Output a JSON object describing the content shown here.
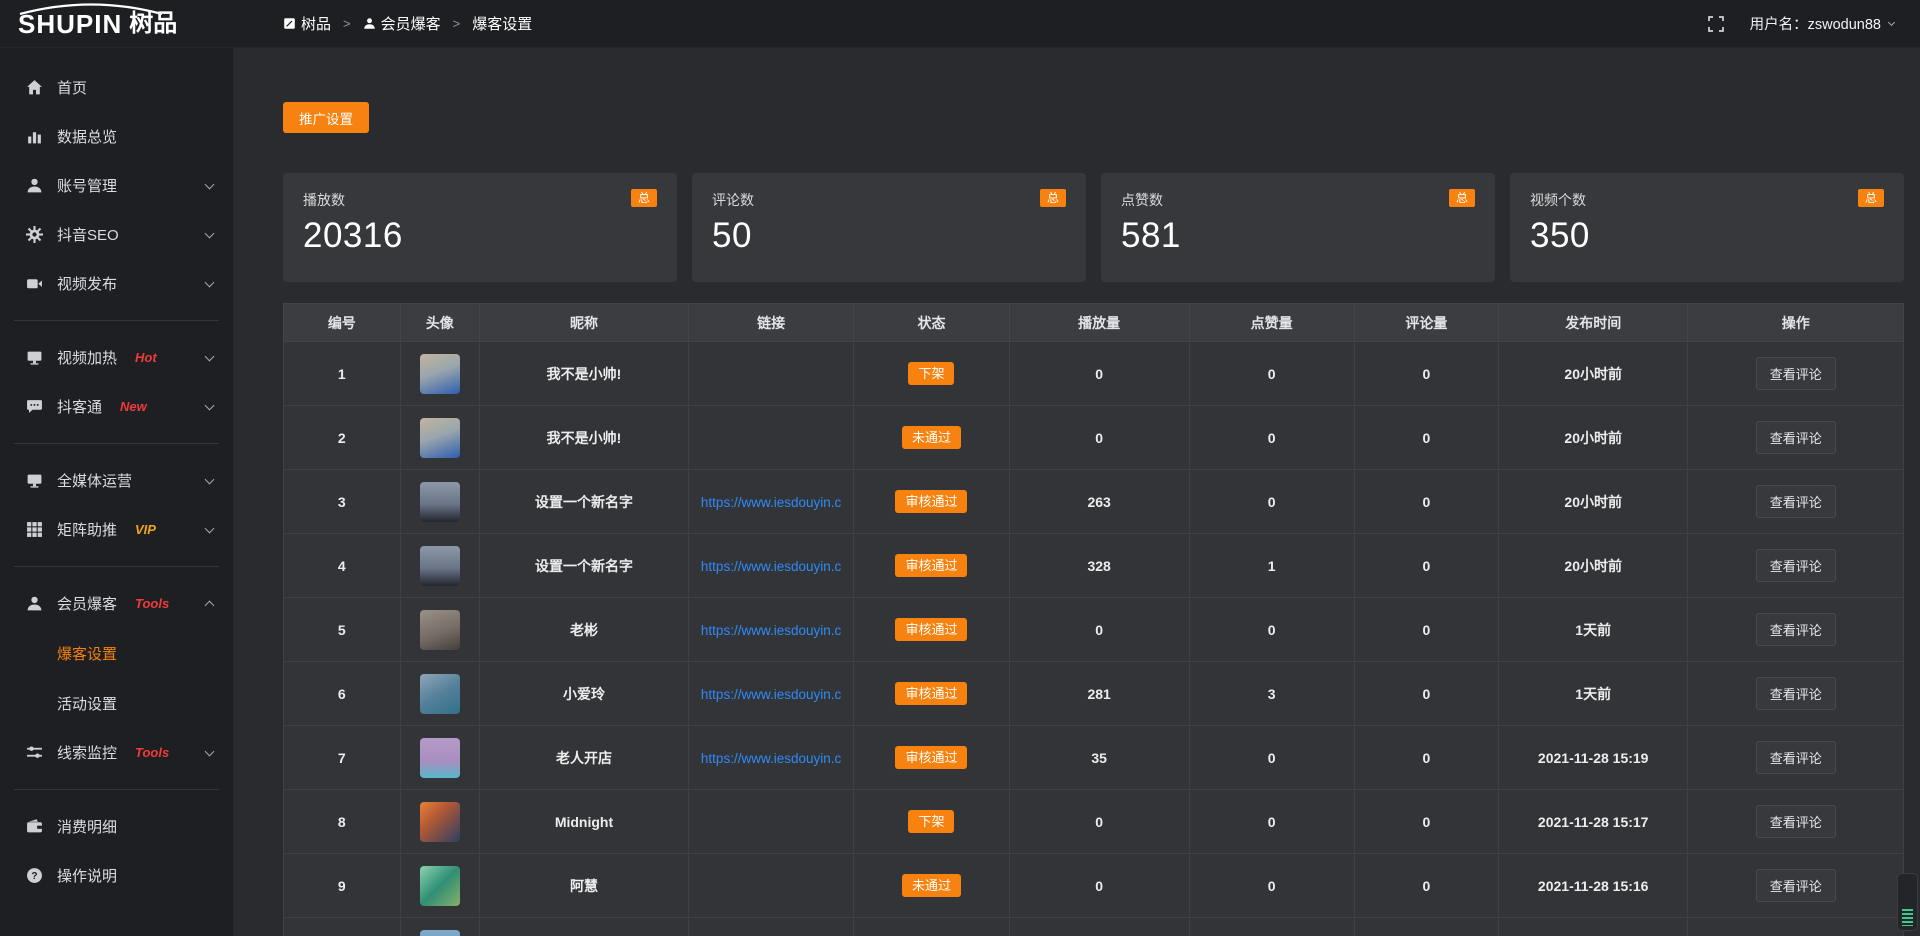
{
  "header": {
    "logo_text": "SHUPIN",
    "logo_cjk": "树品",
    "breadcrumb": [
      {
        "label": "树品",
        "icon": "edit-square-icon"
      },
      {
        "label": "会员爆客",
        "icon": "user-icon"
      },
      {
        "label": "爆客设置",
        "icon": ""
      }
    ],
    "breadcrumb_separator": ">",
    "user_label": "用户名：zswodun88"
  },
  "sidebar": {
    "items": [
      {
        "id": "home",
        "label": "首页",
        "icon": "home-icon"
      },
      {
        "id": "data-overview",
        "label": "数据总览",
        "icon": "chart-icon"
      },
      {
        "id": "account-manage",
        "label": "账号管理",
        "icon": "account-icon",
        "chevron": "down"
      },
      {
        "id": "douyin-seo",
        "label": "抖音SEO",
        "icon": "gear-icon",
        "chevron": "down"
      },
      {
        "id": "video-publish",
        "label": "视频发布",
        "icon": "video-icon",
        "chevron": "down",
        "divider_after": true
      },
      {
        "id": "video-heat",
        "label": "视频加热",
        "icon": "monitor-icon",
        "tag": "Hot",
        "tag_color": "#f03b3b",
        "chevron": "down"
      },
      {
        "id": "douketong",
        "label": "抖客通",
        "icon": "chat-icon",
        "tag": "New",
        "tag_color": "#f03b3b",
        "chevron": "down",
        "divider_after": true
      },
      {
        "id": "media-ops",
        "label": "全媒体运营",
        "icon": "screen-icon",
        "chevron": "down"
      },
      {
        "id": "matrix-boost",
        "label": "矩阵助推",
        "icon": "grid-icon",
        "tag": "VIP",
        "tag_color": "#efa51e",
        "chevron": "down",
        "divider_after": true
      },
      {
        "id": "member-baoke",
        "label": "会员爆客",
        "icon": "member-icon",
        "tag": "Tools",
        "tag_color": "#f03b3b",
        "chevron": "up",
        "children": [
          {
            "id": "baoke-settings",
            "label": "爆客设置",
            "active": true
          },
          {
            "id": "activity-settings",
            "label": "活动设置",
            "active": false
          }
        ]
      },
      {
        "id": "clue-monitor",
        "label": "线索监控",
        "icon": "sliders-icon",
        "tag": "Tools",
        "tag_color": "#f03b3b",
        "chevron": "down",
        "divider_after": true
      },
      {
        "id": "consume-detail",
        "label": "消费明细",
        "icon": "wallet-icon"
      },
      {
        "id": "ops-guide",
        "label": "操作说明",
        "icon": "help-icon"
      }
    ]
  },
  "toolbar": {
    "promo_button": "推广设置"
  },
  "stats": {
    "badge": "总",
    "cards": [
      {
        "label": "播放数",
        "value": "20316"
      },
      {
        "label": "评论数",
        "value": "50"
      },
      {
        "label": "点赞数",
        "value": "581"
      },
      {
        "label": "视频个数",
        "value": "350"
      }
    ]
  },
  "table": {
    "columns": [
      "编号",
      "头像",
      "昵称",
      "链接",
      "状态",
      "播放量",
      "点赞量",
      "评论量",
      "发布时间",
      "操作"
    ],
    "action_label": "查看评论",
    "rows": [
      {
        "id": "1",
        "nickname": "我不是小帅!",
        "link": "",
        "status": "下架",
        "plays": "0",
        "likes": "0",
        "comments": "0",
        "time": "20小时前",
        "avatar_gradient": "linear-gradient(160deg,#c2b49f 0%,#9aa5ad 45%,#2f5fae 100%)"
      },
      {
        "id": "2",
        "nickname": "我不是小帅!",
        "link": "",
        "status": "未通过",
        "plays": "0",
        "likes": "0",
        "comments": "0",
        "time": "20小时前",
        "avatar_gradient": "linear-gradient(160deg,#c2b49f 0%,#9aa5ad 45%,#2f5fae 100%)"
      },
      {
        "id": "3",
        "nickname": "设置一个新名字",
        "link": "https://www.iesdouyin.c",
        "status": "审核通过",
        "plays": "263",
        "likes": "0",
        "comments": "0",
        "time": "20小时前",
        "avatar_gradient": "linear-gradient(180deg,#8d99a8 0%,#6a7587 55%,#23262e 100%)"
      },
      {
        "id": "4",
        "nickname": "设置一个新名字",
        "link": "https://www.iesdouyin.c",
        "status": "审核通过",
        "plays": "328",
        "likes": "1",
        "comments": "0",
        "time": "20小时前",
        "avatar_gradient": "linear-gradient(180deg,#8d99a8 0%,#6a7587 55%,#23262e 100%)"
      },
      {
        "id": "5",
        "nickname": "老彬",
        "link": "https://www.iesdouyin.c",
        "status": "审核通过",
        "plays": "0",
        "likes": "0",
        "comments": "0",
        "time": "1天前",
        "avatar_gradient": "linear-gradient(160deg,#9a9188 0%,#756c66 55%,#453f3b 100%)"
      },
      {
        "id": "6",
        "nickname": "小爱玲",
        "link": "https://www.iesdouyin.c",
        "status": "审核通过",
        "plays": "281",
        "likes": "3",
        "comments": "0",
        "time": "1天前",
        "avatar_gradient": "linear-gradient(150deg,#8fa6b8 0%,#55809a 50%,#31708a 100%)"
      },
      {
        "id": "7",
        "nickname": "老人开店",
        "link": "https://www.iesdouyin.c",
        "status": "审核通过",
        "plays": "35",
        "likes": "0",
        "comments": "0",
        "time": "2021-11-28 15:19",
        "avatar_gradient": "linear-gradient(180deg,#b49ac8 0%,#a88fc0 60%,#55b8c8 100%)"
      },
      {
        "id": "8",
        "nickname": "Midnight",
        "link": "",
        "status": "下架",
        "plays": "0",
        "likes": "0",
        "comments": "0",
        "time": "2021-11-28 15:17",
        "avatar_gradient": "linear-gradient(135deg,#e8833a 0%,#b65a33 35%,#2e3f63 100%)"
      },
      {
        "id": "9",
        "nickname": "阿慧",
        "link": "",
        "status": "未通过",
        "plays": "0",
        "likes": "0",
        "comments": "0",
        "time": "2021-11-28 15:16",
        "avatar_gradient": "linear-gradient(135deg,#8ed1b0 0%,#2f8f74 50%,#8ab06a 100%)"
      },
      {
        "id": "",
        "nickname": "",
        "link": "",
        "status": "",
        "plays": "",
        "likes": "",
        "comments": "",
        "time": "",
        "avatar_gradient": "linear-gradient(180deg,#7fa8c8 0%,#6d9cc0 100%)"
      }
    ]
  },
  "colors": {
    "accent_orange": "#f7820f",
    "link_blue": "#2e8bf7",
    "tag_red": "#f03b3b",
    "tag_gold": "#efa51e",
    "widget_green": "#3ec98f"
  }
}
